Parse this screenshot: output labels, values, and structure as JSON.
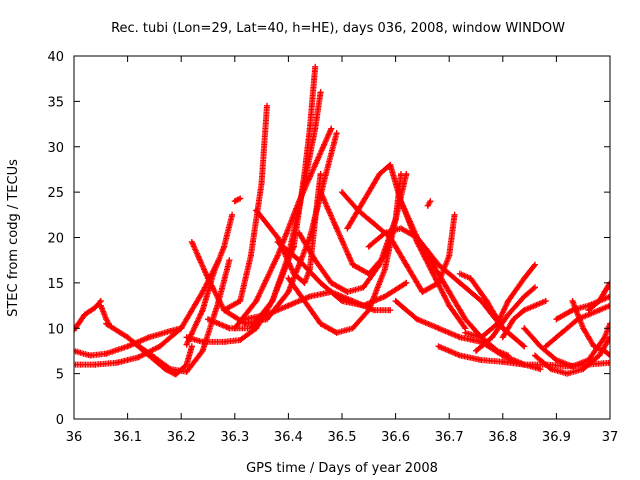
{
  "chart_data": {
    "type": "scatter",
    "title": "Rec. tubi (Lon=29, Lat=40, h=HE), days 036, 2008, window WINDOW",
    "xlabel": "GPS time / Days of year 2008",
    "ylabel": "STEC from codg / TECUs",
    "xlim": [
      36,
      37
    ],
    "ylim": [
      0,
      40
    ],
    "x_ticks": [
      "36",
      "36.1",
      "36.2",
      "36.3",
      "36.4",
      "36.5",
      "36.6",
      "36.7",
      "36.8",
      "36.9",
      "37"
    ],
    "y_ticks": [
      "0",
      "5",
      "10",
      "15",
      "20",
      "25",
      "30",
      "35",
      "40"
    ],
    "grid": false,
    "legend": "none",
    "marker": "plus",
    "color": "#ff0000",
    "series": [
      {
        "x": [
          36.0,
          36.02,
          36.04,
          36.05
        ],
        "y": [
          9.8,
          11.5,
          12.3,
          13.0
        ]
      },
      {
        "x": [
          36.0,
          36.03,
          36.06,
          36.1,
          36.14,
          36.18,
          36.2
        ],
        "y": [
          7.5,
          7.0,
          7.2,
          8.0,
          9.0,
          9.7,
          10.0
        ]
      },
      {
        "x": [
          36.0,
          36.04,
          36.08,
          36.12,
          36.16,
          36.2,
          36.24,
          36.27
        ],
        "y": [
          6.0,
          6.0,
          6.2,
          6.8,
          8.0,
          10.0,
          14.0,
          17.5
        ]
      },
      {
        "x": [
          36.06,
          36.1,
          36.14,
          36.17,
          36.19,
          36.21,
          36.22
        ],
        "y": [
          10.5,
          9.0,
          7.0,
          5.5,
          4.9,
          6.0,
          8.0
        ]
      },
      {
        "x": [
          36.11,
          36.15,
          36.18,
          36.21,
          36.24,
          36.27,
          36.29
        ],
        "y": [
          8.5,
          6.8,
          5.5,
          5.2,
          7.5,
          13.0,
          17.5
        ]
      },
      {
        "x": [
          36.21,
          36.24,
          36.26,
          36.28,
          36.295
        ],
        "y": [
          8.2,
          12.0,
          16.0,
          19.0,
          22.5
        ]
      },
      {
        "x": [
          36.22,
          36.25,
          36.28,
          36.31,
          36.33,
          36.35,
          36.36
        ],
        "y": [
          19.5,
          15.5,
          12.0,
          13.0,
          18.0,
          26.0,
          34.5
        ]
      },
      {
        "x": [
          36.21,
          36.24,
          36.28,
          36.31,
          36.34,
          36.37,
          36.4,
          36.43,
          36.45,
          36.46
        ],
        "y": [
          9.0,
          8.5,
          8.5,
          8.7,
          10.0,
          13.0,
          18.0,
          26.0,
          32.0,
          36.0
        ]
      },
      {
        "x": [
          36.25,
          36.29,
          36.33,
          36.37,
          36.41,
          36.43,
          36.44,
          36.45
        ],
        "y": [
          11.0,
          10.0,
          10.0,
          13.0,
          19.0,
          27.0,
          32.0,
          38.8
        ]
      },
      {
        "x": [
          36.28,
          36.32,
          36.36,
          36.4,
          36.44,
          36.47,
          36.49
        ],
        "y": [
          12.0,
          10.5,
          11.0,
          14.0,
          20.0,
          27.0,
          31.5
        ]
      },
      {
        "x": [
          36.3,
          36.34,
          36.38,
          36.42,
          36.45,
          36.48
        ],
        "y": [
          10.0,
          13.0,
          18.0,
          24.0,
          28.0,
          32.0
        ]
      },
      {
        "x": [
          36.32,
          36.36,
          36.4,
          36.44,
          36.48,
          36.52,
          36.56,
          36.59
        ],
        "y": [
          11.0,
          11.5,
          12.5,
          13.5,
          14.0,
          13.0,
          12.0,
          12.0
        ]
      },
      {
        "x": [
          36.34,
          36.38,
          36.41,
          36.43,
          36.44,
          36.45,
          36.46
        ],
        "y": [
          23.0,
          20.0,
          16.0,
          15.0,
          16.5,
          22.0,
          27.0
        ]
      },
      {
        "x": [
          36.38,
          36.42,
          36.46,
          36.5,
          36.54,
          36.58,
          36.62
        ],
        "y": [
          19.5,
          17.5,
          15.0,
          13.0,
          12.5,
          13.5,
          15.0
        ]
      },
      {
        "x": [
          36.4,
          36.43,
          36.46,
          36.49,
          36.52,
          36.55,
          36.58,
          36.6
        ],
        "y": [
          15.5,
          13.0,
          10.5,
          9.5,
          10.0,
          12.0,
          16.5,
          22.0
        ]
      },
      {
        "x": [
          36.42,
          36.45,
          36.48,
          36.51,
          36.54,
          36.57,
          36.6,
          36.62
        ],
        "y": [
          20.5,
          17.5,
          15.0,
          14.0,
          14.5,
          17.0,
          22.0,
          27.0
        ]
      },
      {
        "x": [
          36.46,
          36.49,
          36.52,
          36.55,
          36.58,
          36.6,
          36.61
        ],
        "y": [
          25.0,
          21.0,
          17.0,
          16.0,
          18.0,
          22.0,
          27.0
        ]
      },
      {
        "x": [
          36.5,
          36.53,
          36.56,
          36.59,
          36.62,
          36.65,
          36.68,
          36.7,
          36.71
        ],
        "y": [
          25.0,
          23.0,
          21.5,
          20.0,
          17.0,
          14.0,
          15.0,
          18.0,
          22.5
        ]
      },
      {
        "x": [
          36.51,
          36.54,
          36.57,
          36.59,
          36.61,
          36.64,
          36.67,
          36.7,
          36.73
        ],
        "y": [
          21.0,
          24.0,
          27.0,
          28.0,
          24.0,
          19.5,
          16.0,
          12.5,
          10.0
        ]
      },
      {
        "x": [
          36.55,
          36.58,
          36.61,
          36.64,
          36.67,
          36.7,
          36.73,
          36.76,
          36.79,
          36.81
        ],
        "y": [
          19.0,
          20.5,
          21.0,
          20.0,
          17.0,
          14.0,
          11.0,
          9.0,
          7.5,
          7.0
        ]
      },
      {
        "x": [
          36.6,
          36.64,
          36.68,
          36.72,
          36.76,
          36.8,
          36.84,
          36.87
        ],
        "y": [
          13.0,
          11.0,
          10.0,
          9.0,
          8.5,
          7.0,
          6.0,
          5.5
        ]
      },
      {
        "x": [
          36.61,
          36.64,
          36.68,
          36.72,
          36.76,
          36.8,
          36.84
        ],
        "y": [
          24.0,
          20.0,
          17.0,
          15.0,
          13.0,
          10.0,
          8.0
        ]
      },
      {
        "x": [
          36.68,
          36.72,
          36.76,
          36.8,
          36.84,
          36.88,
          36.92,
          36.96,
          37.0
        ],
        "y": [
          8.0,
          7.0,
          6.5,
          6.3,
          6.0,
          6.0,
          5.8,
          6.0,
          6.2
        ]
      },
      {
        "x": [
          36.73,
          36.76,
          36.79,
          36.81,
          36.84,
          36.86
        ],
        "y": [
          9.5,
          9.0,
          10.5,
          13.0,
          15.5,
          17.0
        ]
      },
      {
        "x": [
          36.75,
          36.78,
          36.81,
          36.84,
          36.86
        ],
        "y": [
          7.5,
          9.0,
          11.5,
          13.5,
          14.5
        ]
      },
      {
        "x": [
          36.72,
          36.74,
          36.77,
          36.8
        ],
        "y": [
          16.0,
          15.5,
          13.0,
          10.0
        ]
      },
      {
        "x": [
          36.8,
          36.82,
          36.84,
          36.86,
          36.88
        ],
        "y": [
          9.0,
          11.0,
          12.0,
          12.5,
          13.0
        ]
      },
      {
        "x": [
          36.84,
          36.87,
          36.9,
          36.93,
          36.96,
          36.99,
          37.0
        ],
        "y": [
          10.0,
          8.0,
          6.5,
          5.8,
          6.5,
          9.0,
          10.5
        ]
      },
      {
        "x": [
          36.86,
          36.89,
          36.92,
          36.95,
          36.98,
          37.0
        ],
        "y": [
          7.0,
          5.5,
          5.0,
          5.5,
          7.0,
          9.0
        ]
      },
      {
        "x": [
          36.88,
          36.91,
          36.94,
          36.96,
          36.98,
          37.0
        ],
        "y": [
          8.0,
          9.5,
          11.0,
          11.5,
          12.0,
          12.5
        ]
      },
      {
        "x": [
          36.9,
          36.93,
          36.96,
          36.98,
          37.0
        ],
        "y": [
          11.0,
          12.0,
          12.5,
          13.0,
          13.5
        ]
      },
      {
        "x": [
          36.93,
          36.95,
          36.97,
          36.99,
          37.0
        ],
        "y": [
          13.0,
          10.0,
          8.0,
          7.5,
          7.0
        ]
      },
      {
        "x": [
          36.96,
          36.98,
          36.99,
          37.0
        ],
        "y": [
          12.0,
          13.0,
          14.0,
          15.0
        ]
      },
      {
        "x": [
          36.05,
          36.06,
          36.065
        ],
        "y": [
          12.5,
          11.0,
          10.5
        ]
      },
      {
        "x": [
          36.3,
          36.31
        ],
        "y": [
          24.0,
          24.3
        ]
      },
      {
        "x": [
          36.66,
          36.665
        ],
        "y": [
          23.5,
          24.0
        ]
      }
    ]
  }
}
